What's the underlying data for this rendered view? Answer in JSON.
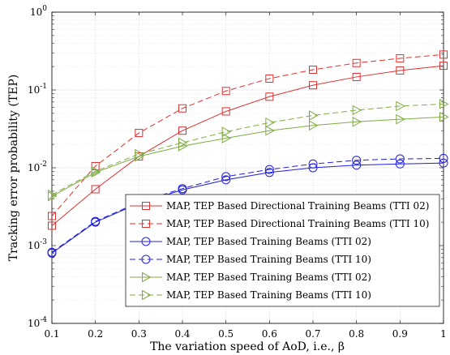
{
  "chart_data": {
    "type": "line",
    "xlabel": "The variation speed of AoD, i.e., β",
    "ylabel": "Tracking error probability (TEP)",
    "xlim": [
      0.1,
      1.0
    ],
    "ylim": [
      0.0001,
      1
    ],
    "y_scale": "log",
    "grid": true,
    "legend_position": "bottom-right",
    "x": [
      0.1,
      0.2,
      0.3,
      0.4,
      0.5,
      0.6,
      0.7,
      0.8,
      0.9,
      1.0
    ],
    "x_ticks": [
      "0.1",
      "0.2",
      "0.3",
      "0.4",
      "0.5",
      "0.6",
      "0.7",
      "0.8",
      "0.9",
      "1"
    ],
    "y_ticks": [
      {
        "base": "10",
        "exp": "0"
      },
      {
        "base": "10",
        "exp": "-1"
      },
      {
        "base": "10",
        "exp": "-2"
      },
      {
        "base": "10",
        "exp": "-3"
      },
      {
        "base": "10",
        "exp": "-4"
      }
    ],
    "series": [
      {
        "name": "MAP, TEP Based Directional Training Beams (TTI 02)",
        "color": "#e03030",
        "dash": "solid",
        "marker": "square",
        "values": [
          0.0018,
          0.0053,
          0.014,
          0.03,
          0.053,
          0.082,
          0.115,
          0.147,
          0.178,
          0.205
        ]
      },
      {
        "name": "MAP, TEP Based Directional Training Beams (TTI 10)",
        "color": "#e03030",
        "dash": "dashed",
        "marker": "square",
        "values": [
          0.0024,
          0.0105,
          0.028,
          0.058,
          0.097,
          0.14,
          0.182,
          0.222,
          0.255,
          0.285
        ]
      },
      {
        "name": "MAP, TEP Based Training Beams (TTI 02)",
        "color": "#2020e0",
        "dash": "solid",
        "marker": "circle",
        "values": [
          0.0008,
          0.002,
          0.0035,
          0.0052,
          0.007,
          0.0087,
          0.01,
          0.0108,
          0.0112,
          0.0115
        ]
      },
      {
        "name": "MAP, TEP Based Training Beams (TTI 10)",
        "color": "#2020e0",
        "dash": "dashed",
        "marker": "circle",
        "values": [
          0.00082,
          0.00205,
          0.0036,
          0.0054,
          0.0077,
          0.0095,
          0.0112,
          0.0125,
          0.013,
          0.0132
        ]
      },
      {
        "name": "MAP, TEP Based Training Beams (TTI 02)",
        "color": "#7fab42",
        "dash": "solid",
        "marker": "triangle-right",
        "values": [
          0.0043,
          0.0087,
          0.014,
          0.019,
          0.024,
          0.03,
          0.035,
          0.039,
          0.042,
          0.045
        ]
      },
      {
        "name": "MAP, TEP Based Training Beams (TTI 10)",
        "color": "#7fab42",
        "dash": "dashed",
        "marker": "triangle-right",
        "values": [
          0.0045,
          0.009,
          0.015,
          0.021,
          0.029,
          0.038,
          0.047,
          0.055,
          0.062,
          0.066
        ]
      }
    ]
  }
}
